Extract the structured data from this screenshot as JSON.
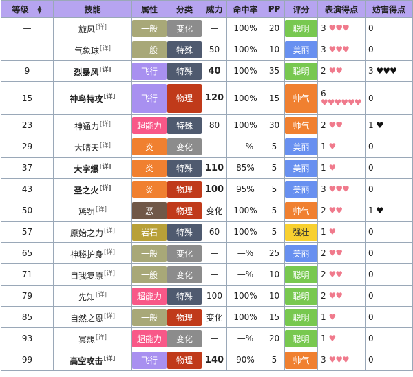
{
  "headers": {
    "level": "等级",
    "skill": "技能",
    "type": "属性",
    "category": "分类",
    "power": "威力",
    "accuracy": "命中率",
    "pp": "PP",
    "rating": "评分",
    "appeal": "表演得点",
    "jam": "妨害得点"
  },
  "colors": {
    "header_bg": "#b6a4f0",
    "heart_pink": "#f07a8c",
    "heart_black": "#111111",
    "type_normal": "#a8a878",
    "type_flying": "#a890f0",
    "type_psychic": "#f85888",
    "type_fire": "#f08030",
    "type_dark": "#705848",
    "type_rock": "#b8a038",
    "cat_status": "#8c8c8c",
    "cat_special": "#4f5a6f",
    "cat_physical": "#c03a1a",
    "rating_smart": "#78c850",
    "rating_beauty": "#6890f0",
    "rating_cool": "#f08030",
    "rating_tough": "#f8d030"
  },
  "rows": [
    {
      "level": "—",
      "name": "旋风",
      "tag": "[详]",
      "name_bold": false,
      "type": "一般",
      "type_color": "#a8a878",
      "category": "变化",
      "cat_color": "#8c8c8c",
      "power": "—",
      "power_bold": false,
      "accuracy": "100%",
      "pp": "20",
      "rating": "聪明",
      "rating_color": "#78c850",
      "appeal_num": "3",
      "appeal_hearts": "♥♥♥",
      "jam_num": "0",
      "jam_hearts": ""
    },
    {
      "level": "—",
      "name": "气象球",
      "tag": "[详]",
      "name_bold": false,
      "type": "一般",
      "type_color": "#a8a878",
      "category": "特殊",
      "cat_color": "#4f5a6f",
      "power": "50",
      "power_bold": false,
      "accuracy": "100%",
      "pp": "10",
      "rating": "美丽",
      "rating_color": "#6890f0",
      "appeal_num": "3",
      "appeal_hearts": "♥♥♥",
      "jam_num": "0",
      "jam_hearts": ""
    },
    {
      "level": "9",
      "name": "烈暴风",
      "tag": "[详]",
      "name_bold": true,
      "type": "飞行",
      "type_color": "#a890f0",
      "category": "特殊",
      "cat_color": "#4f5a6f",
      "power": "40",
      "power_bold": true,
      "accuracy": "100%",
      "pp": "35",
      "rating": "聪明",
      "rating_color": "#78c850",
      "appeal_num": "2",
      "appeal_hearts": "♥♥",
      "jam_num": "3",
      "jam_hearts": "♥♥♥"
    },
    {
      "level": "15",
      "name": "神鸟特攻",
      "tag": "[详]",
      "name_bold": true,
      "type": "飞行",
      "type_color": "#a890f0",
      "category": "物理",
      "cat_color": "#c03a1a",
      "power": "120",
      "power_bold": true,
      "accuracy": "100%",
      "pp": "15",
      "rating": "帅气",
      "rating_color": "#f08030",
      "appeal_num": "6",
      "appeal_hearts": "♥♥♥♥♥♥",
      "jam_num": "0",
      "jam_hearts": "",
      "tall": true
    },
    {
      "level": "23",
      "name": "神通力",
      "tag": "[详]",
      "name_bold": false,
      "type": "超能力",
      "type_color": "#f85888",
      "category": "特殊",
      "cat_color": "#4f5a6f",
      "power": "80",
      "power_bold": false,
      "accuracy": "100%",
      "pp": "30",
      "rating": "帅气",
      "rating_color": "#f08030",
      "appeal_num": "2",
      "appeal_hearts": "♥♥",
      "jam_num": "1",
      "jam_hearts": "♥"
    },
    {
      "level": "29",
      "name": "大晴天",
      "tag": "[详]",
      "name_bold": false,
      "type": "炎",
      "type_color": "#f08030",
      "category": "变化",
      "cat_color": "#8c8c8c",
      "power": "—",
      "power_bold": false,
      "accuracy": "—%",
      "pp": "5",
      "rating": "美丽",
      "rating_color": "#6890f0",
      "appeal_num": "1",
      "appeal_hearts": "♥",
      "jam_num": "0",
      "jam_hearts": ""
    },
    {
      "level": "37",
      "name": "大字爆",
      "tag": "[详]",
      "name_bold": true,
      "type": "炎",
      "type_color": "#f08030",
      "category": "特殊",
      "cat_color": "#4f5a6f",
      "power": "110",
      "power_bold": true,
      "accuracy": "85%",
      "pp": "5",
      "rating": "美丽",
      "rating_color": "#6890f0",
      "appeal_num": "1",
      "appeal_hearts": "♥",
      "jam_num": "0",
      "jam_hearts": ""
    },
    {
      "level": "43",
      "name": "圣之火",
      "tag": "[详]",
      "name_bold": true,
      "type": "炎",
      "type_color": "#f08030",
      "category": "物理",
      "cat_color": "#c03a1a",
      "power": "100",
      "power_bold": true,
      "accuracy": "95%",
      "pp": "5",
      "rating": "美丽",
      "rating_color": "#6890f0",
      "appeal_num": "3",
      "appeal_hearts": "♥♥♥",
      "jam_num": "0",
      "jam_hearts": ""
    },
    {
      "level": "50",
      "name": "惩罚",
      "tag": "[详]",
      "name_bold": false,
      "type": "恶",
      "type_color": "#705848",
      "category": "物理",
      "cat_color": "#c03a1a",
      "power": "变化",
      "power_bold": false,
      "accuracy": "100%",
      "pp": "5",
      "rating": "帅气",
      "rating_color": "#f08030",
      "appeal_num": "2",
      "appeal_hearts": "♥♥",
      "jam_num": "1",
      "jam_hearts": "♥"
    },
    {
      "level": "57",
      "name": "原始之力",
      "tag": "[详]",
      "name_bold": false,
      "type": "岩石",
      "type_color": "#b8a038",
      "category": "特殊",
      "cat_color": "#4f5a6f",
      "power": "60",
      "power_bold": false,
      "accuracy": "100%",
      "pp": "5",
      "rating": "强壮",
      "rating_color": "#f8d030",
      "appeal_num": "1",
      "appeal_hearts": "♥",
      "jam_num": "0",
      "jam_hearts": ""
    },
    {
      "level": "65",
      "name": "神秘护身",
      "tag": "[详]",
      "name_bold": false,
      "type": "一般",
      "type_color": "#a8a878",
      "category": "变化",
      "cat_color": "#8c8c8c",
      "power": "—",
      "power_bold": false,
      "accuracy": "—%",
      "pp": "25",
      "rating": "美丽",
      "rating_color": "#6890f0",
      "appeal_num": "2",
      "appeal_hearts": "♥♥",
      "jam_num": "0",
      "jam_hearts": ""
    },
    {
      "level": "71",
      "name": "自我复原",
      "tag": "[详]",
      "name_bold": false,
      "type": "一般",
      "type_color": "#a8a878",
      "category": "变化",
      "cat_color": "#8c8c8c",
      "power": "—",
      "power_bold": false,
      "accuracy": "—%",
      "pp": "10",
      "rating": "聪明",
      "rating_color": "#78c850",
      "appeal_num": "2",
      "appeal_hearts": "♥♥",
      "jam_num": "0",
      "jam_hearts": ""
    },
    {
      "level": "79",
      "name": "先知",
      "tag": "[详]",
      "name_bold": false,
      "type": "超能力",
      "type_color": "#f85888",
      "category": "特殊",
      "cat_color": "#4f5a6f",
      "power": "100",
      "power_bold": false,
      "accuracy": "100%",
      "pp": "10",
      "rating": "聪明",
      "rating_color": "#78c850",
      "appeal_num": "2",
      "appeal_hearts": "♥♥",
      "jam_num": "0",
      "jam_hearts": ""
    },
    {
      "level": "85",
      "name": "自然之恩",
      "tag": "[详]",
      "name_bold": false,
      "type": "一般",
      "type_color": "#a8a878",
      "category": "物理",
      "cat_color": "#c03a1a",
      "power": "变化",
      "power_bold": false,
      "accuracy": "100%",
      "pp": "15",
      "rating": "聪明",
      "rating_color": "#78c850",
      "appeal_num": "1",
      "appeal_hearts": "♥",
      "jam_num": "0",
      "jam_hearts": ""
    },
    {
      "level": "93",
      "name": "冥想",
      "tag": "[详]",
      "name_bold": false,
      "type": "超能力",
      "type_color": "#f85888",
      "category": "变化",
      "cat_color": "#8c8c8c",
      "power": "—",
      "power_bold": false,
      "accuracy": "—%",
      "pp": "20",
      "rating": "聪明",
      "rating_color": "#78c850",
      "appeal_num": "1",
      "appeal_hearts": "♥",
      "jam_num": "0",
      "jam_hearts": ""
    },
    {
      "level": "99",
      "name": "高空攻击",
      "tag": "[详]",
      "name_bold": true,
      "type": "飞行",
      "type_color": "#a890f0",
      "category": "物理",
      "cat_color": "#c03a1a",
      "power": "140",
      "power_bold": true,
      "accuracy": "90%",
      "pp": "5",
      "rating": "帅气",
      "rating_color": "#f08030",
      "appeal_num": "3",
      "appeal_hearts": "♥♥♥",
      "jam_num": "0",
      "jam_hearts": ""
    }
  ]
}
